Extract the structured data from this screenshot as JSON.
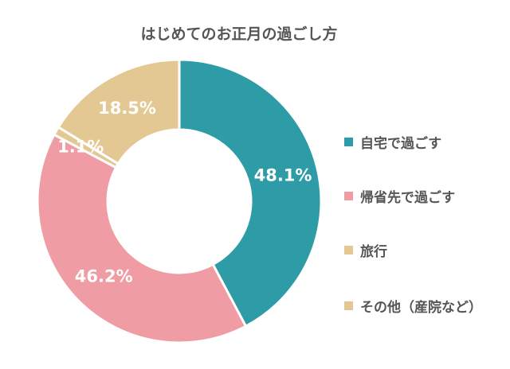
{
  "chart_data": {
    "type": "pie",
    "donut": true,
    "title": "はじめてのお正月の過ごし方",
    "categories": [
      "自宅で過ごす",
      "帰省先で過ごす",
      "旅行",
      "その他（産院など）"
    ],
    "values": [
      48.1,
      46.2,
      1.1,
      18.5
    ],
    "labels": [
      "48.1%",
      "46.2%",
      "1.1%",
      "18.5%"
    ],
    "colors": [
      "#2e9ca6",
      "#ef9ca4",
      "#e3c894",
      "#e3c894"
    ],
    "legend_position": "right",
    "start_angle": "top, clockwise"
  }
}
